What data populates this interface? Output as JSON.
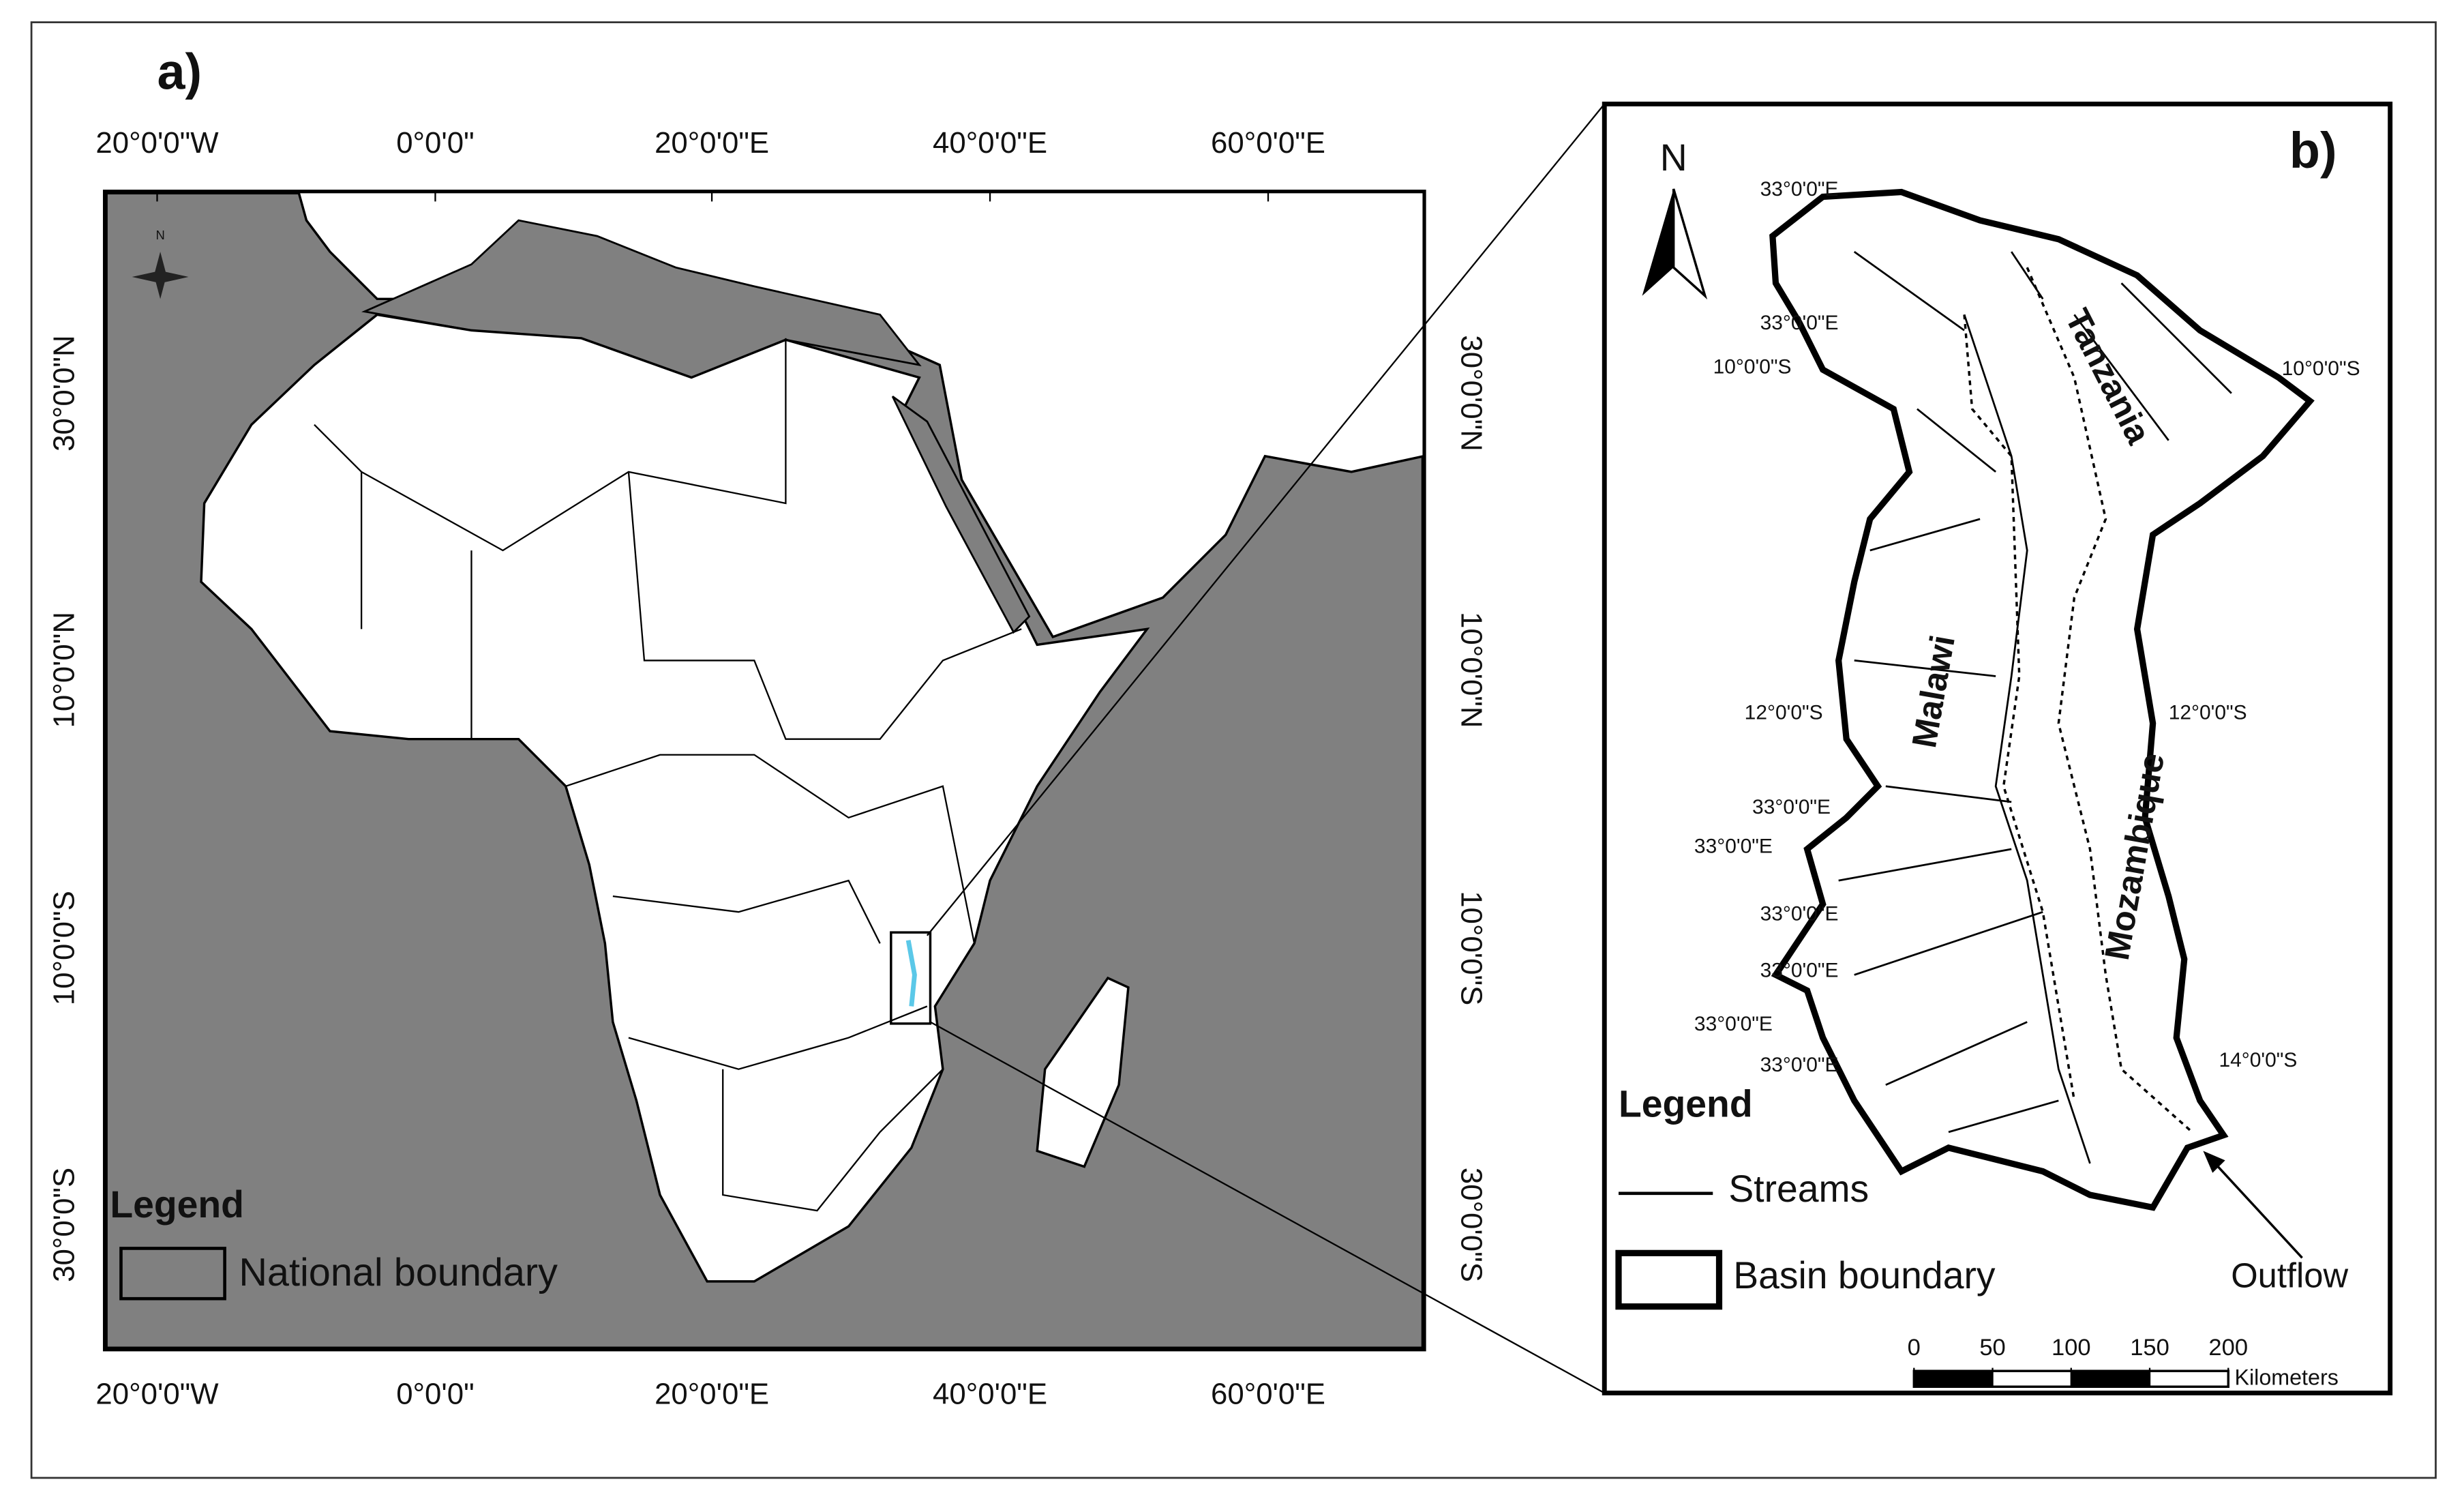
{
  "panel_a": {
    "label": "a)",
    "north": "N",
    "lon_labels": [
      "20°0'0\"W",
      "0°0'0\"",
      "20°0'0\"E",
      "40°0'0\"E",
      "60°0'0\"E"
    ],
    "lat_labels": [
      "30°0'0\"N",
      "10°0'0\"N",
      "10°0'0\"S",
      "30°0'0\"S"
    ],
    "legend": {
      "title": "Legend",
      "item": "National boundary"
    }
  },
  "panel_b": {
    "label": "b)",
    "north": "N",
    "coord_labels": [
      "33°0'0\"E",
      "33°0'0\"E",
      "10°0'0\"S",
      "10°0'0\"S",
      "12°0'0\"S",
      "12°0'0\"S",
      "33°0'0\"E",
      "33°0'0\"E",
      "33°0'0\"E",
      "33°0'0\"E",
      "33°0'0\"E",
      "33°0'0\"E",
      "14°0'0\"S"
    ],
    "countries": [
      "Tanzania",
      "Malawi",
      "Mozambique"
    ],
    "legend": {
      "title": "Legend",
      "streams": "Streams",
      "basin": "Basin boundary"
    },
    "outflow": "Outflow",
    "scale_ticks": [
      0,
      50,
      100,
      150,
      200
    ],
    "scale_unit": "Kilometers"
  }
}
